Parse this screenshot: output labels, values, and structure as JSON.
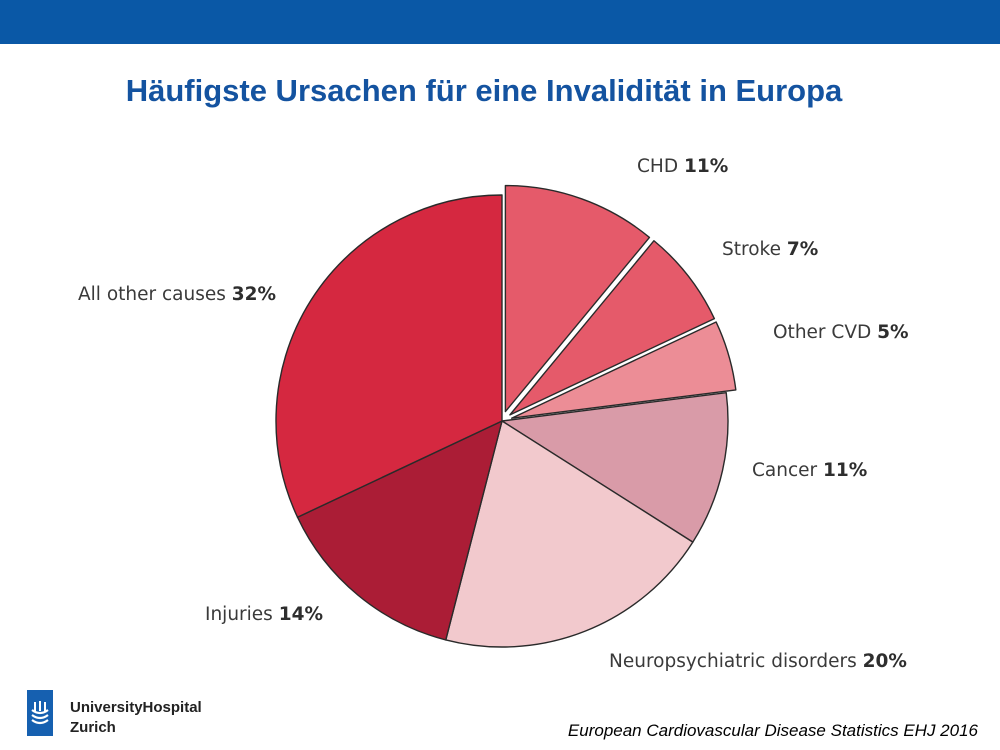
{
  "header": {
    "title": "Häufigste Ursachen für eine Invalidität in Europa"
  },
  "chart_data": {
    "type": "pie",
    "title": "Häufigste Ursachen für eine Invalidität in Europa",
    "slices": [
      {
        "label": "CHD",
        "value_text": "11%",
        "value": 11,
        "color": "#e55a6a",
        "exploded": true
      },
      {
        "label": "Stroke",
        "value_text": "7%",
        "value": 7,
        "color": "#e55a6a",
        "exploded": true
      },
      {
        "label": "Other CVD",
        "value_text": "5%",
        "value": 5,
        "color": "#ec8d96",
        "exploded": true
      },
      {
        "label": "Cancer",
        "value_text": "11%",
        "value": 11,
        "color": "#d99ba8",
        "exploded": false
      },
      {
        "label": "Neuropsychiatric disorders",
        "value_text": "20%",
        "value": 20,
        "color": "#f2c9cd",
        "exploded": false
      },
      {
        "label": "Injuries",
        "value_text": "14%",
        "value": 14,
        "color": "#ab1d36",
        "exploded": false
      },
      {
        "label": "All other causes",
        "value_text": "32%",
        "value": 32,
        "color": "#d52840",
        "exploded": false
      }
    ]
  },
  "logo": {
    "line1": "UniversityHospital",
    "line2": "Zurich"
  },
  "source": "European Cardiovascular Disease Statistics EHJ 2016",
  "colors": {
    "topbar": "#0a58a6",
    "title": "#1453a0"
  }
}
